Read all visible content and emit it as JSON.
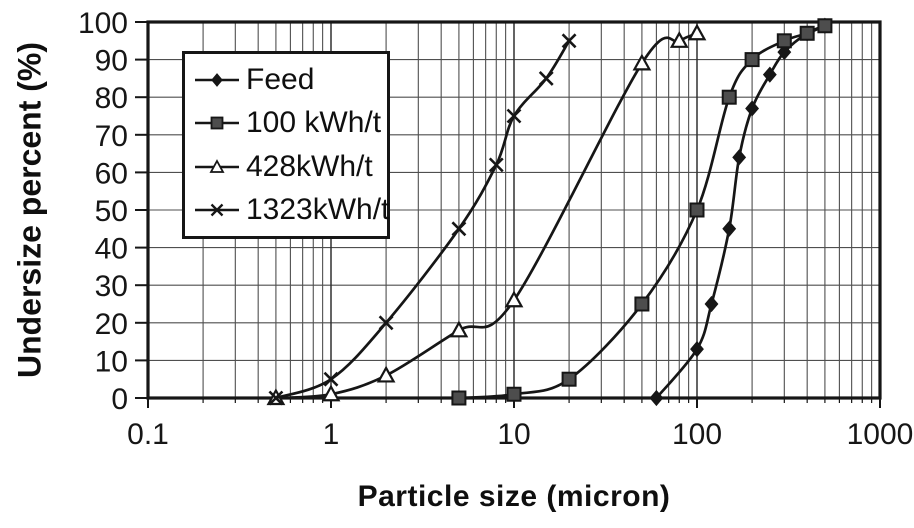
{
  "figure": {
    "background": "#ffffff",
    "ink_color": "#161616",
    "grid_color": "#4f4f4f",
    "decade_grid_color": "#303030"
  },
  "chart_data": {
    "type": "line",
    "title": "",
    "xlabel": "Particle size (micron)",
    "ylabel": "Undersize percent (%)",
    "x_scale": "log",
    "xlim": [
      0.1,
      1000
    ],
    "ylim": [
      0,
      100
    ],
    "x_ticks": [
      "0.1",
      "1",
      "10",
      "100",
      "1000"
    ],
    "x_tick_values": [
      0.1,
      1,
      10,
      100,
      1000
    ],
    "y_ticks": [
      "0",
      "10",
      "20",
      "30",
      "40",
      "50",
      "60",
      "70",
      "80",
      "90",
      "100"
    ],
    "y_tick_values": [
      0,
      10,
      20,
      30,
      40,
      50,
      60,
      70,
      80,
      90,
      100
    ],
    "grid": true,
    "legend_position": "upper-left-inside",
    "series": [
      {
        "name": "Feed",
        "marker": "diamond",
        "marker_fill": "#161616",
        "x": [
          60,
          100,
          120,
          150,
          170,
          200,
          250,
          300,
          400,
          500
        ],
        "y": [
          0,
          13,
          25,
          45,
          64,
          77,
          86,
          92,
          97,
          99
        ]
      },
      {
        "name": "100 kWh/t",
        "marker": "square",
        "marker_fill": "#4d4d4d",
        "x": [
          5,
          10,
          20,
          50,
          100,
          150,
          200,
          300,
          400,
          500
        ],
        "y": [
          0,
          1,
          5,
          25,
          50,
          80,
          90,
          95,
          97,
          99
        ]
      },
      {
        "name": "428kWh/t",
        "marker": "triangle",
        "marker_fill": "#ffffff",
        "x": [
          0.5,
          1,
          2,
          5,
          10,
          50,
          80,
          100
        ],
        "y": [
          0,
          1,
          6,
          18,
          26,
          89,
          95,
          97
        ]
      },
      {
        "name": "1323kWh/t",
        "marker": "cross",
        "marker_fill": "#161616",
        "x": [
          0.5,
          1,
          2,
          5,
          8,
          10,
          15,
          20
        ],
        "y": [
          0,
          5,
          20,
          45,
          62,
          75,
          85,
          95
        ]
      }
    ]
  }
}
